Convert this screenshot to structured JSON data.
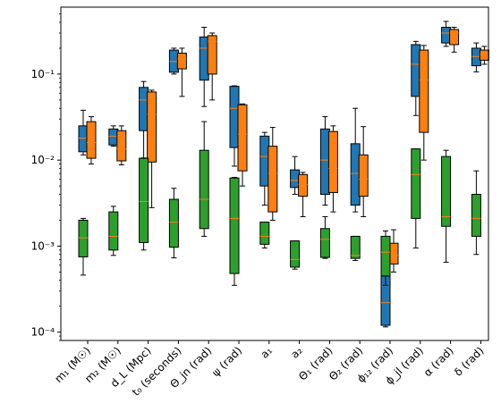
{
  "chart_data": {
    "type": "box",
    "yscale": "log",
    "ylim": [
      8e-05,
      0.6
    ],
    "yticks": [
      {
        "value": 0.0001,
        "label": "10⁻⁴"
      },
      {
        "value": 0.001,
        "label": "10⁻³"
      },
      {
        "value": 0.01,
        "label": "10⁻²"
      },
      {
        "value": 0.1,
        "label": "10⁻¹"
      }
    ],
    "categories": [
      "m₁ (M☉)",
      "m₂ (M☉)",
      "d_L (Mpc)",
      "t₀ (seconds)",
      "Θ_jn (rad)",
      "ψ (rad)",
      "a₁",
      "a₂",
      "Θ₁ (rad)",
      "Θ₂ (rad)",
      "ϕ₁₂ (rad)",
      "ϕ_jl (rad)",
      "α (rad)",
      "δ (rad)"
    ],
    "series": [
      {
        "color": "#1f77b4",
        "boxes": [
          {
            "whislo": 0.0115,
            "q1": 0.0125,
            "med": 0.018,
            "q3": 0.025,
            "whishi": 0.038
          },
          {
            "whislo": 0.0145,
            "q1": 0.015,
            "med": 0.019,
            "q3": 0.023,
            "whishi": 0.025
          },
          {
            "whislo": 0.0095,
            "q1": 0.022,
            "med": 0.05,
            "q3": 0.07,
            "whishi": 0.082
          },
          {
            "whislo": 0.1,
            "q1": 0.105,
            "med": 0.14,
            "q3": 0.19,
            "whishi": 0.2
          },
          {
            "whislo": 0.042,
            "q1": 0.085,
            "med": 0.2,
            "q3": 0.27,
            "whishi": 0.35
          },
          {
            "whislo": 0.0085,
            "q1": 0.014,
            "med": 0.04,
            "q3": 0.072,
            "whishi": 0.073
          },
          {
            "whislo": 0.003,
            "q1": 0.005,
            "med": 0.011,
            "q3": 0.019,
            "whishi": 0.021
          },
          {
            "whislo": 0.004,
            "q1": 0.0048,
            "med": 0.0058,
            "q3": 0.0077,
            "whishi": 0.011
          },
          {
            "whislo": 0.003,
            "q1": 0.004,
            "med": 0.01,
            "q3": 0.023,
            "whishi": 0.032
          },
          {
            "whislo": 0.0025,
            "q1": 0.003,
            "med": 0.007,
            "q3": 0.0155,
            "whishi": 0.04
          },
          {
            "whislo": 0.000115,
            "q1": 0.00012,
            "med": 0.00022,
            "q3": 0.00045,
            "whishi": 0.0005
          },
          {
            "whislo": 0.033,
            "q1": 0.055,
            "med": 0.13,
            "q3": 0.22,
            "whishi": 0.24
          },
          {
            "whislo": 0.21,
            "q1": 0.23,
            "med": 0.3,
            "q3": 0.35,
            "whishi": 0.41
          },
          {
            "whislo": 0.106,
            "q1": 0.125,
            "med": 0.16,
            "q3": 0.2,
            "whishi": 0.23
          }
        ]
      },
      {
        "color": "#ff7f0e",
        "boxes": [
          {
            "whislo": 0.009,
            "q1": 0.0105,
            "med": 0.016,
            "q3": 0.028,
            "whishi": 0.032
          },
          {
            "whislo": 0.0088,
            "q1": 0.0098,
            "med": 0.0135,
            "q3": 0.022,
            "whishi": 0.025
          },
          {
            "whislo": 0.0028,
            "q1": 0.0095,
            "med": 0.034,
            "q3": 0.062,
            "whishi": 0.065
          },
          {
            "whislo": 0.055,
            "q1": 0.115,
            "med": 0.15,
            "q3": 0.175,
            "whishi": 0.2
          },
          {
            "whislo": 0.05,
            "q1": 0.1,
            "med": 0.24,
            "q3": 0.28,
            "whishi": 0.3
          },
          {
            "whislo": 0.005,
            "q1": 0.0075,
            "med": 0.02,
            "q3": 0.044,
            "whishi": 0.045
          },
          {
            "whislo": 0.002,
            "q1": 0.0025,
            "med": 0.007,
            "q3": 0.0145,
            "whishi": 0.024
          },
          {
            "whislo": 0.0022,
            "q1": 0.0038,
            "med": 0.0052,
            "q3": 0.0068,
            "whishi": 0.0072
          },
          {
            "whislo": 0.0025,
            "q1": 0.0042,
            "med": 0.008,
            "q3": 0.0215,
            "whishi": 0.025
          },
          {
            "whislo": 0.0022,
            "q1": 0.0038,
            "med": 0.006,
            "q3": 0.0115,
            "whishi": 0.0245
          },
          {
            "whislo": 0.0005,
            "q1": 0.00062,
            "med": 0.00078,
            "q3": 0.00108,
            "whishi": 0.00155
          },
          {
            "whislo": 0.01,
            "q1": 0.021,
            "med": 0.085,
            "q3": 0.19,
            "whishi": 0.215
          },
          {
            "whislo": 0.18,
            "q1": 0.22,
            "med": 0.3,
            "q3": 0.33,
            "whishi": 0.35
          },
          {
            "whislo": 0.13,
            "q1": 0.145,
            "med": 0.17,
            "q3": 0.19,
            "whishi": 0.21
          }
        ]
      },
      {
        "color": "#2ca02c",
        "boxes": [
          {
            "whislo": 0.00046,
            "q1": 0.00075,
            "med": 0.00125,
            "q3": 0.002,
            "whishi": 0.0021
          },
          {
            "whislo": 0.00078,
            "q1": 0.0009,
            "med": 0.0013,
            "q3": 0.0025,
            "whishi": 0.0029
          },
          {
            "whislo": 0.0009,
            "q1": 0.0011,
            "med": 0.0033,
            "q3": 0.0105,
            "whishi": 0.0106
          },
          {
            "whislo": 0.00073,
            "q1": 0.00097,
            "med": 0.0019,
            "q3": 0.0035,
            "whishi": 0.0047
          },
          {
            "whislo": 0.0013,
            "q1": 0.0016,
            "med": 0.0035,
            "q3": 0.013,
            "whishi": 0.028
          },
          {
            "whislo": 0.00035,
            "q1": 0.00048,
            "med": 0.0021,
            "q3": 0.0062,
            "whishi": 0.0063
          },
          {
            "whislo": 0.00095,
            "q1": 0.00105,
            "med": 0.0013,
            "q3": 0.0019,
            "whishi": 0.0019
          },
          {
            "whislo": 0.00054,
            "q1": 0.00057,
            "med": 0.0007,
            "q3": 0.00115,
            "whishi": 0.00115
          },
          {
            "whislo": 0.00072,
            "q1": 0.00074,
            "med": 0.0012,
            "q3": 0.0016,
            "whishi": 0.0022
          },
          {
            "whislo": 0.00068,
            "q1": 0.00072,
            "med": 0.00078,
            "q3": 0.0013,
            "whishi": 0.0013
          },
          {
            "whislo": 0.00035,
            "q1": 0.00045,
            "med": 0.00085,
            "q3": 0.0013,
            "whishi": 0.0015
          },
          {
            "whislo": 0.00095,
            "q1": 0.0021,
            "med": 0.0068,
            "q3": 0.0135,
            "whishi": 0.0135
          },
          {
            "whislo": 0.00065,
            "q1": 0.0017,
            "med": 0.0022,
            "q3": 0.011,
            "whishi": 0.013
          },
          {
            "whislo": 0.0008,
            "q1": 0.0013,
            "med": 0.0021,
            "q3": 0.004,
            "whishi": 0.0075
          }
        ]
      }
    ],
    "median_color": "#ff7f0e",
    "grid": false,
    "legend": "none"
  }
}
